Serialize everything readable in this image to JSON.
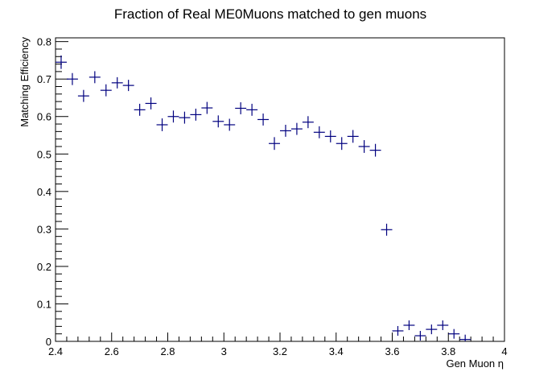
{
  "chart_data": {
    "type": "scatter",
    "title": "Fraction of Real ME0Muons matched to gen muons",
    "xlabel": "Gen Muon η",
    "ylabel": "Matching Efficiency",
    "xlim": [
      2.4,
      4.0
    ],
    "ylim": [
      0,
      0.81
    ],
    "x_ticks": [
      "2.4",
      "2.6",
      "2.8",
      "3",
      "3.2",
      "3.4",
      "3.6",
      "3.8",
      "4"
    ],
    "y_ticks": [
      "0",
      "0.1",
      "0.2",
      "0.3",
      "0.4",
      "0.5",
      "0.6",
      "0.7",
      "0.8"
    ],
    "grid": false,
    "marker_color": "#00007f",
    "series": [
      {
        "x": [
          2.42,
          2.46,
          2.5,
          2.54,
          2.58,
          2.62,
          2.66,
          2.7,
          2.74,
          2.78,
          2.82,
          2.86,
          2.9,
          2.94,
          2.98,
          3.02,
          3.06,
          3.1,
          3.14,
          3.18,
          3.22,
          3.26,
          3.3,
          3.34,
          3.38,
          3.42,
          3.46,
          3.5,
          3.54,
          3.58,
          3.62,
          3.66,
          3.7,
          3.74,
          3.78,
          3.82,
          3.86
        ],
        "y": [
          0.745,
          0.7,
          0.655,
          0.705,
          0.67,
          0.69,
          0.683,
          0.618,
          0.635,
          0.578,
          0.6,
          0.597,
          0.605,
          0.623,
          0.587,
          0.578,
          0.622,
          0.618,
          0.592,
          0.528,
          0.562,
          0.567,
          0.585,
          0.558,
          0.547,
          0.528,
          0.547,
          0.52,
          0.51,
          0.298,
          0.028,
          0.043,
          0.015,
          0.032,
          0.043,
          0.02,
          0.005
        ],
        "yerr": [
          0.018,
          0.016,
          0.016,
          0.016,
          0.016,
          0.015,
          0.015,
          0.016,
          0.016,
          0.017,
          0.016,
          0.016,
          0.016,
          0.016,
          0.016,
          0.016,
          0.016,
          0.016,
          0.016,
          0.017,
          0.016,
          0.016,
          0.016,
          0.016,
          0.016,
          0.017,
          0.017,
          0.017,
          0.017,
          0.016,
          0.007,
          0.008,
          0.006,
          0.007,
          0.008,
          0.006,
          0.004
        ]
      }
    ]
  }
}
